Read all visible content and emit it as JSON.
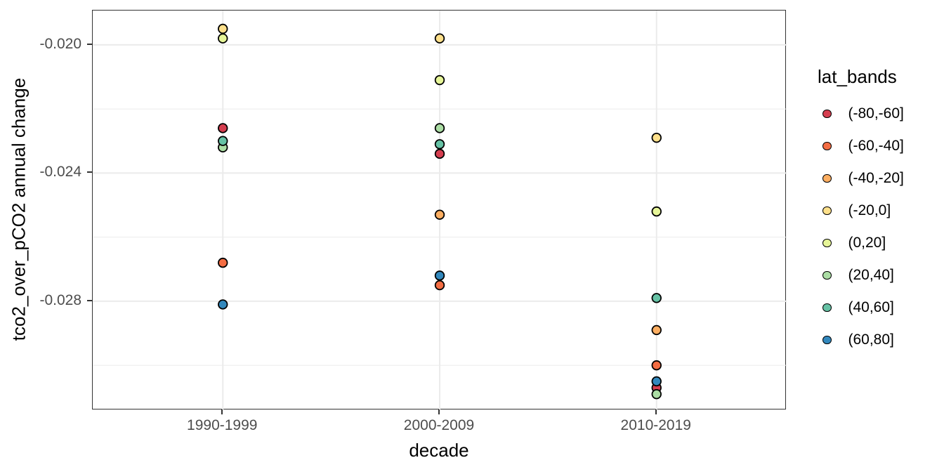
{
  "chart_data": {
    "type": "scatter",
    "title": "",
    "xlabel": "decade",
    "ylabel": "tco2_over_pCO2 annual change",
    "categories": [
      "1990-1999",
      "2000-2009",
      "2010-2019"
    ],
    "legend": {
      "title": "lat_bands",
      "position": "right"
    },
    "y_axis": {
      "major_ticks": [
        -0.02,
        -0.024,
        -0.028
      ],
      "major_tick_labels": [
        "-0.020",
        "-0.024",
        "-0.028"
      ],
      "minor_gridlines": [
        -0.022,
        -0.026,
        -0.03
      ],
      "range": [
        -0.0314,
        -0.01893
      ]
    },
    "grid": "major and minor horizontal gridlines plus vertical category gridlines, light gray on white panel with full dark border",
    "series": [
      {
        "name": "(-80,-60]",
        "color": "#D53E4F",
        "values": [
          -0.0226,
          -0.0234,
          -0.0307
        ]
      },
      {
        "name": "(-60,-40]",
        "color": "#F46D43",
        "values": [
          -0.0268,
          -0.0275,
          -0.03
        ]
      },
      {
        "name": "(-40,-20]",
        "color": "#FDAE61",
        "values": [
          null,
          -0.0253,
          -0.0289
        ]
      },
      {
        "name": "(-20,0]",
        "color": "#FEE08B",
        "values": [
          -0.0195,
          -0.0198,
          -0.0229
        ]
      },
      {
        "name": "(0,20]",
        "color": "#E6F598",
        "values": [
          -0.0198,
          -0.0211,
          -0.0252
        ]
      },
      {
        "name": "(20,40]",
        "color": "#ABDDA4",
        "values": [
          -0.0232,
          -0.0226,
          -0.0309
        ]
      },
      {
        "name": "(40,60]",
        "color": "#66C2A5",
        "values": [
          -0.023,
          -0.0231,
          -0.0279
        ]
      },
      {
        "name": "(60,80]",
        "color": "#3288BD",
        "values": [
          -0.0281,
          -0.0272,
          -0.0305
        ]
      }
    ],
    "style": {
      "point_outline": "#000000",
      "gridline_color": "#EBEBEB",
      "panel_border_color": "#333333",
      "tick_label_color": "#4D4D4D",
      "axis_title_color": "#000000",
      "background": "#FFFFFF"
    }
  }
}
